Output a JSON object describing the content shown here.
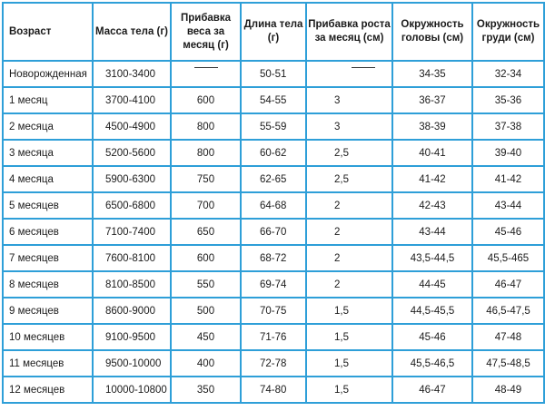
{
  "table": {
    "headers": {
      "age": "Возраст",
      "mass": "Масса тела (г)",
      "weight_gain": "Прибавка веса за месяц (г)",
      "length": "Длина тела (г)",
      "height_gain": "Прибавка роста за месяц (см)",
      "head_circ": "Окружность головы (см)",
      "chest_circ": "Окружность груди (см)"
    },
    "rows": [
      {
        "age": "Новорожденная",
        "mass": "3100-3400",
        "weight_gain": "",
        "length": "50-51",
        "height_gain": "",
        "head": "34-35",
        "chest": "32-34"
      },
      {
        "age": "1 месяц",
        "mass": "3700-4100",
        "weight_gain": "600",
        "length": "54-55",
        "height_gain": "3",
        "head": "36-37",
        "chest": "35-36"
      },
      {
        "age": "2 месяца",
        "mass": "4500-4900",
        "weight_gain": "800",
        "length": "55-59",
        "height_gain": "3",
        "head": "38-39",
        "chest": "37-38"
      },
      {
        "age": "3 месяца",
        "mass": "5200-5600",
        "weight_gain": "800",
        "length": "60-62",
        "height_gain": "2,5",
        "head": "40-41",
        "chest": "39-40"
      },
      {
        "age": "4 месяца",
        "mass": "5900-6300",
        "weight_gain": "750",
        "length": "62-65",
        "height_gain": "2,5",
        "head": "41-42",
        "chest": "41-42"
      },
      {
        "age": "5 месяцев",
        "mass": "6500-6800",
        "weight_gain": "700",
        "length": "64-68",
        "height_gain": "2",
        "head": "42-43",
        "chest": "43-44"
      },
      {
        "age": "6 месяцев",
        "mass": "7100-7400",
        "weight_gain": "650",
        "length": "66-70",
        "height_gain": "2",
        "head": "43-44",
        "chest": "45-46"
      },
      {
        "age": "7 месяцев",
        "mass": "7600-8100",
        "weight_gain": "600",
        "length": "68-72",
        "height_gain": "2",
        "head": "43,5-44,5",
        "chest": "45,5-465"
      },
      {
        "age": "8 месяцев",
        "mass": "8100-8500",
        "weight_gain": "550",
        "length": "69-74",
        "height_gain": "2",
        "head": "44-45",
        "chest": "46-47"
      },
      {
        "age": "9 месяцев",
        "mass": "8600-9000",
        "weight_gain": "500",
        "length": "70-75",
        "height_gain": "1,5",
        "head": "44,5-45,5",
        "chest": "46,5-47,5"
      },
      {
        "age": "10 месяцев",
        "mass": "9100-9500",
        "weight_gain": "450",
        "length": "71-76",
        "height_gain": "1,5",
        "head": "45-46",
        "chest": "47-48"
      },
      {
        "age": "11 месяцев",
        "mass": "9500-10000",
        "weight_gain": "400",
        "length": "72-78",
        "height_gain": "1,5",
        "head": "45,5-46,5",
        "chest": "47,5-48,5"
      },
      {
        "age": "12 месяцев",
        "mass": "10000-10800",
        "weight_gain": "350",
        "length": "74-80",
        "height_gain": "1,5",
        "head": "46-47",
        "chest": "48-49"
      }
    ]
  },
  "colors": {
    "border": "#2e9fd8",
    "text": "#1b1b1b"
  }
}
